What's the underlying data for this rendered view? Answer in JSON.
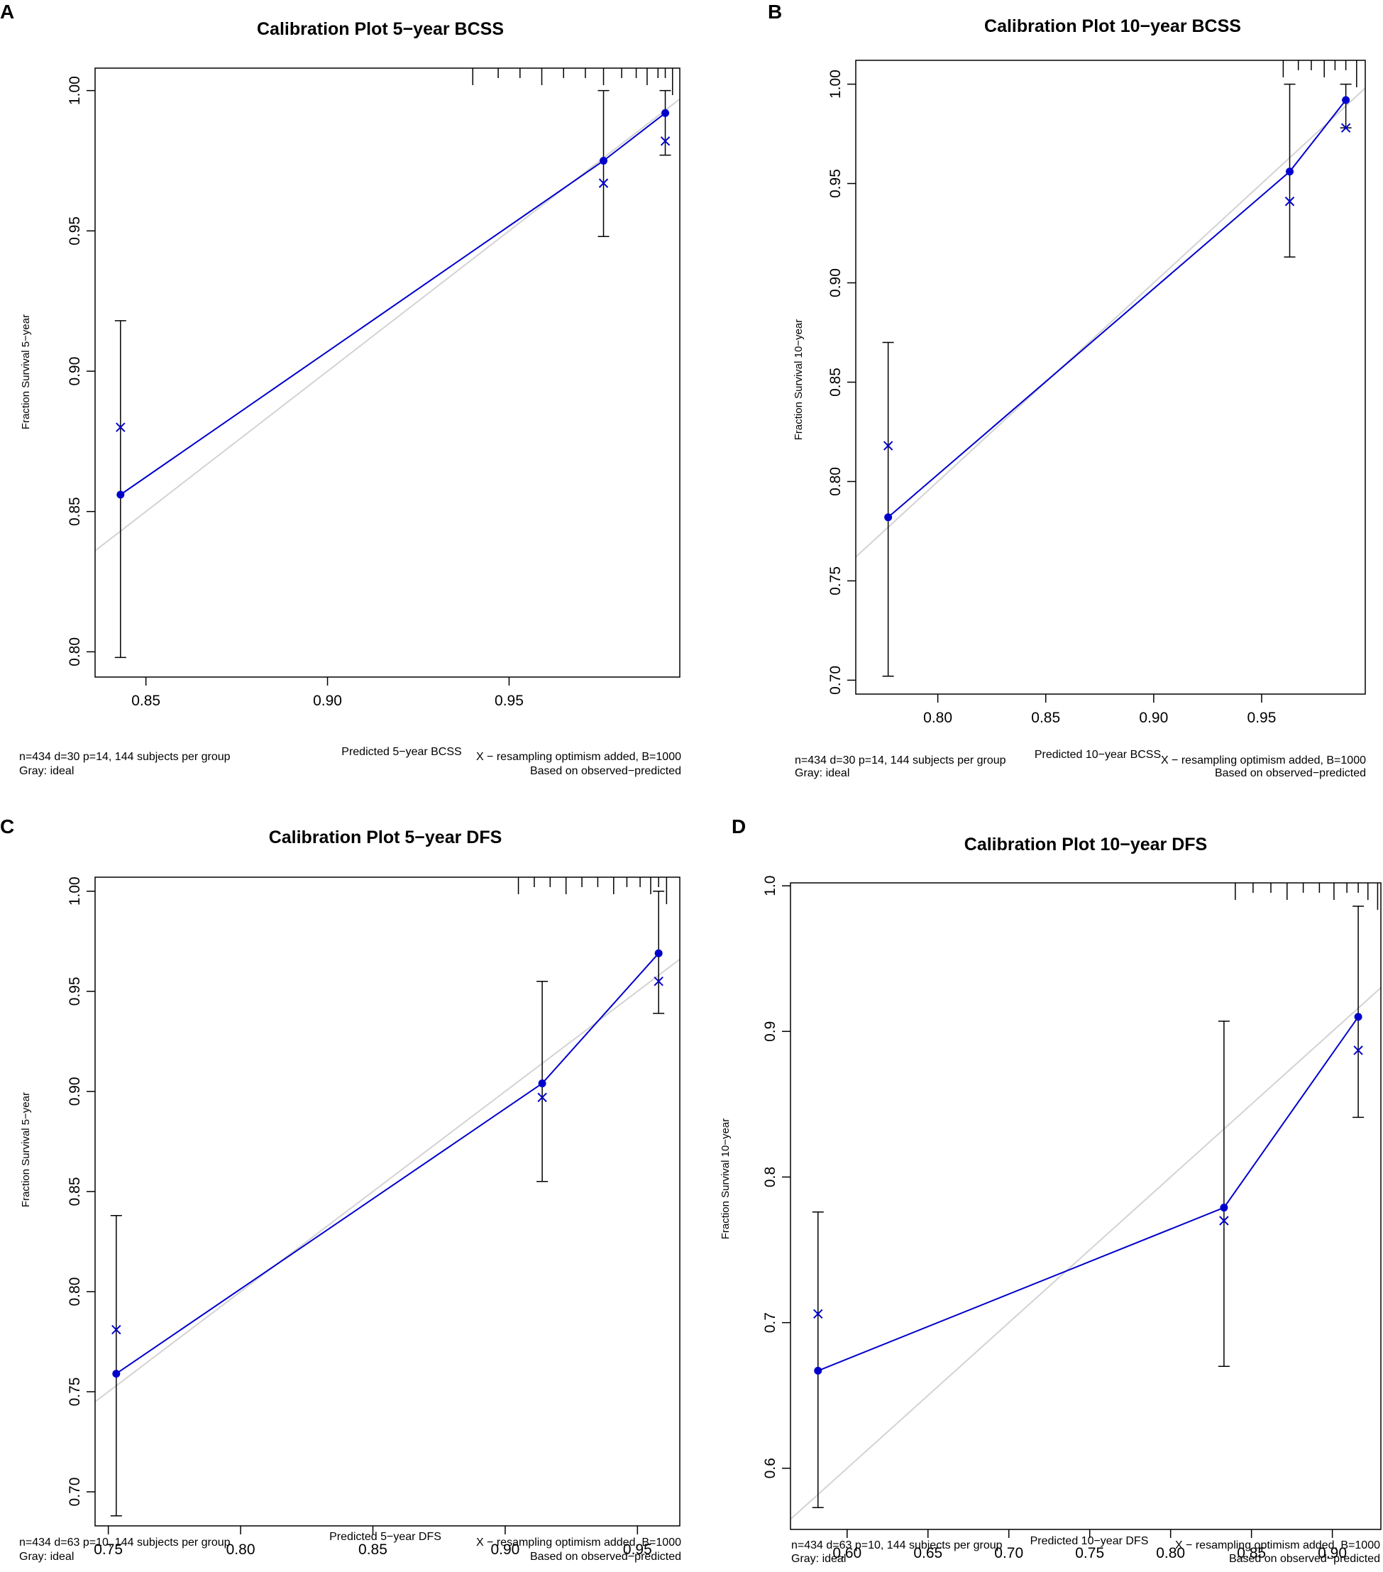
{
  "colors": {
    "series": "#0000cc",
    "ideal": "#d3d3d3",
    "axis": "#000000"
  },
  "chart_data": [
    {
      "panel": "A",
      "type": "line",
      "title": "Calibration Plot 5−year BCSS",
      "xlabel": "Predicted 5−year BCSS",
      "ylabel": "Fraction Survival 5−year",
      "xlim": [
        0.836,
        0.997
      ],
      "ylim": [
        0.791,
        1.008
      ],
      "xticks": [
        0.85,
        0.9,
        0.95
      ],
      "xtick_labels": [
        "0.85",
        "0.90",
        "0.95"
      ],
      "yticks": [
        0.8,
        0.85,
        0.9,
        0.95,
        1.0
      ],
      "ytick_labels": [
        "0.80",
        "0.85",
        "0.90",
        "0.95",
        "1.00"
      ],
      "ideal": [
        [
          0.836,
          0.836
        ],
        [
          0.997,
          0.997
        ]
      ],
      "observed": {
        "x": [
          0.843,
          0.976,
          0.993
        ],
        "y": [
          0.856,
          0.975,
          0.992
        ],
        "lower": [
          0.798,
          0.948,
          0.977
        ],
        "upper": [
          0.918,
          1.0,
          1.0
        ]
      },
      "corrected": {
        "x": [
          0.843,
          0.976,
          0.993
        ],
        "y": [
          0.88,
          0.967,
          0.982
        ]
      },
      "rug_x": [
        0.94,
        0.947,
        0.953,
        0.959,
        0.965,
        0.971,
        0.976,
        0.981,
        0.985,
        0.988,
        0.991,
        0.993,
        0.995
      ],
      "notes": {
        "left1": "n=434 d=30 p=14, 144 subjects per group",
        "left2": "Gray: ideal",
        "right1": "X − resampling optimism added, B=1000",
        "right2": "Based on observed−predicted"
      }
    },
    {
      "panel": "B",
      "type": "line",
      "title": "Calibration Plot 10−year BCSS",
      "xlabel": "Predicted 10−year BCSS",
      "ylabel": "Fraction Survival 10−year",
      "xlim": [
        0.762,
        0.998
      ],
      "ylim": [
        0.693,
        1.012
      ],
      "xticks": [
        0.8,
        0.85,
        0.9,
        0.95
      ],
      "xtick_labels": [
        "0.80",
        "0.85",
        "0.90",
        "0.95"
      ],
      "yticks": [
        0.7,
        0.75,
        0.8,
        0.85,
        0.9,
        0.95,
        1.0
      ],
      "ytick_labels": [
        "0.70",
        "0.75",
        "0.80",
        "0.85",
        "0.90",
        "0.95",
        "1.00"
      ],
      "ideal": [
        [
          0.762,
          0.762
        ],
        [
          0.998,
          0.998
        ]
      ],
      "observed": {
        "x": [
          0.777,
          0.963,
          0.989
        ],
        "y": [
          0.782,
          0.956,
          0.992
        ],
        "lower": [
          0.702,
          0.913,
          0.978
        ],
        "upper": [
          0.87,
          1.0,
          1.0
        ]
      },
      "corrected": {
        "x": [
          0.777,
          0.963,
          0.989
        ],
        "y": [
          0.818,
          0.941,
          0.978
        ]
      },
      "rug_x": [
        0.96,
        0.967,
        0.973,
        0.979,
        0.984,
        0.989,
        0.994
      ],
      "notes": {
        "left1": "n=434 d=30 p=14, 144 subjects per group",
        "left2": "Gray: ideal",
        "right1": "X − resampling optimism added, B=1000",
        "right2": "Based on observed−predicted"
      }
    },
    {
      "panel": "C",
      "type": "line",
      "title": "Calibration Plot 5−year DFS",
      "xlabel": "Predicted 5−year DFS",
      "ylabel": "Fraction Survival 5−year",
      "xlim": [
        0.745,
        0.966
      ],
      "ylim": [
        0.683,
        1.007
      ],
      "xticks": [
        0.75,
        0.8,
        0.85,
        0.9,
        0.95
      ],
      "xtick_labels": [
        "0.75",
        "0.80",
        "0.85",
        "0.90",
        "0.95"
      ],
      "yticks": [
        0.7,
        0.75,
        0.8,
        0.85,
        0.9,
        0.95,
        1.0
      ],
      "ytick_labels": [
        "0.70",
        "0.75",
        "0.80",
        "0.85",
        "0.90",
        "0.95",
        "1.00"
      ],
      "ideal": [
        [
          0.745,
          0.745
        ],
        [
          0.966,
          0.966
        ]
      ],
      "observed": {
        "x": [
          0.753,
          0.914,
          0.958
        ],
        "y": [
          0.759,
          0.904,
          0.969
        ],
        "lower": [
          0.688,
          0.855,
          0.939
        ],
        "upper": [
          0.838,
          0.955,
          1.0
        ]
      },
      "corrected": {
        "x": [
          0.753,
          0.914,
          0.958
        ],
        "y": [
          0.781,
          0.897,
          0.955
        ]
      },
      "rug_x": [
        0.905,
        0.911,
        0.917,
        0.923,
        0.929,
        0.935,
        0.941,
        0.946,
        0.951,
        0.955,
        0.958,
        0.961
      ],
      "notes": {
        "left1": "n=434 d=63 p=10, 144 subjects per group",
        "left2": "Gray: ideal",
        "right1": "X − resampling optimism added, B=1000",
        "right2": "Based on observed−predicted"
      }
    },
    {
      "panel": "D",
      "type": "line",
      "title": "Calibration Plot 10−year DFS",
      "xlabel": "Predicted 10−year DFS",
      "ylabel": "Fraction Survival 10−year",
      "xlim": [
        0.565,
        0.93
      ],
      "ylim": [
        0.558,
        1.002
      ],
      "xticks": [
        0.6,
        0.65,
        0.7,
        0.75,
        0.8,
        0.85,
        0.9
      ],
      "xtick_labels": [
        "0.60",
        "0.65",
        "0.70",
        "0.75",
        "0.80",
        "0.85",
        "0.90"
      ],
      "yticks": [
        0.6,
        0.7,
        0.8,
        0.9,
        1.0
      ],
      "ytick_labels": [
        "0.6",
        "0.7",
        "0.8",
        "0.9",
        "1.0"
      ],
      "ideal": [
        [
          0.565,
          0.565
        ],
        [
          0.93,
          0.93
        ]
      ],
      "observed": {
        "x": [
          0.582,
          0.833,
          0.916
        ],
        "y": [
          0.667,
          0.779,
          0.91
        ],
        "lower": [
          0.573,
          0.67,
          0.841
        ],
        "upper": [
          0.776,
          0.907,
          0.986
        ]
      },
      "corrected": {
        "x": [
          0.582,
          0.833,
          0.916
        ],
        "y": [
          0.706,
          0.77,
          0.887
        ]
      },
      "rug_x": [
        0.84,
        0.851,
        0.862,
        0.872,
        0.882,
        0.892,
        0.901,
        0.909,
        0.916,
        0.922,
        0.928
      ],
      "notes": {
        "left1": "n=434 d=63 p=10, 144 subjects per group",
        "left2": "Gray: ideal",
        "right1": "X − resampling optimism added, B=1000",
        "right2": "Based on observed−predicted"
      }
    }
  ]
}
